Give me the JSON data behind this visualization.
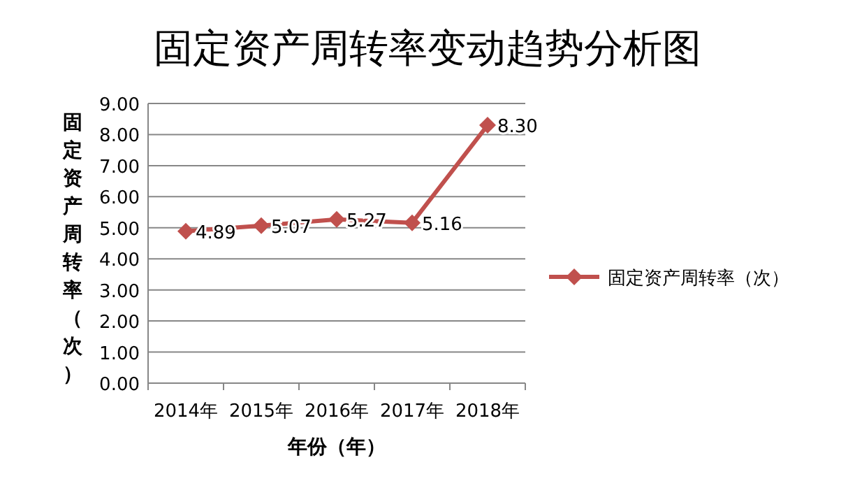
{
  "chart_data": {
    "type": "line",
    "title": "固定资产周转率变动趋势分析图",
    "xlabel": "年份（年）",
    "ylabel": "固定资产周转率（次）",
    "categories": [
      "2014年",
      "2015年",
      "2016年",
      "2017年",
      "2018年"
    ],
    "series": [
      {
        "name": "固定资产周转率（次）",
        "color": "#c0504d",
        "values": [
          4.89,
          5.07,
          5.27,
          5.16,
          8.3
        ]
      }
    ],
    "value_labels": [
      "4.89",
      "5.07",
      "5.27",
      "5.16",
      "8.30"
    ],
    "ylim": [
      0,
      9
    ],
    "yticks": [
      {
        "value": 0,
        "label": "0.00"
      },
      {
        "value": 1,
        "label": "1.00"
      },
      {
        "value": 2,
        "label": "2.00"
      },
      {
        "value": 3,
        "label": "3.00"
      },
      {
        "value": 4,
        "label": "4.00"
      },
      {
        "value": 5,
        "label": "5.00"
      },
      {
        "value": 6,
        "label": "6.00"
      },
      {
        "value": 7,
        "label": "7.00"
      },
      {
        "value": 8,
        "label": "8.00"
      },
      {
        "value": 9,
        "label": "9.00"
      }
    ],
    "grid": "y",
    "legend": "right",
    "marker": "diamond",
    "line_style": "solid"
  }
}
